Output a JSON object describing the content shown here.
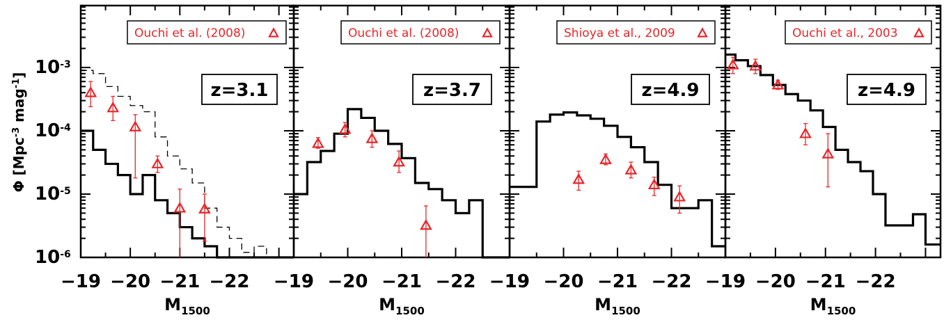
{
  "y_axis_title": {
    "text": "Φ [Mpc",
    "sup1": "-3",
    "mid": " mag",
    "sup2": "-1",
    "end": "]"
  },
  "y_tick_labels": [
    {
      "base": "10",
      "exp": "-6",
      "value": 1e-06
    },
    {
      "base": "10",
      "exp": "-5",
      "value": 1e-05
    },
    {
      "base": "10",
      "exp": "-4",
      "value": 0.0001
    },
    {
      "base": "10",
      "exp": "-3",
      "value": 0.001
    }
  ],
  "colors": {
    "data": "#e8262a",
    "model": "#000000"
  },
  "chart_data": [
    {
      "type": "line",
      "panel_label": "z=3.1",
      "legend": "Ouchi et al. (2008)",
      "xlabel": {
        "main": "M",
        "sub": "1500"
      },
      "xlim": [
        -19,
        -23.3
      ],
      "ylim": [
        1e-06,
        0.01
      ],
      "y_scale": "log",
      "x_ticks": [
        "-19",
        "-20",
        "-21",
        "-22"
      ],
      "model_solid": {
        "edges": [
          -19,
          -19.25,
          -19.5,
          -19.75,
          -20,
          -20.25,
          -20.5,
          -20.75,
          -21,
          -21.25,
          -21.5,
          -21.75,
          -22,
          -22.25,
          -22.5,
          -22.75,
          -23,
          -23.3
        ],
        "values": [
          0.0001,
          5e-05,
          3e-05,
          2e-05,
          1e-05,
          2e-05,
          8e-06,
          5e-06,
          3e-06,
          2e-06,
          1.5e-06,
          1e-06,
          1e-06,
          1e-06,
          1e-06,
          1e-06,
          1e-06
        ]
      },
      "model_dashed": {
        "edges": [
          -19,
          -19.25,
          -19.5,
          -19.75,
          -20,
          -20.25,
          -20.5,
          -20.75,
          -21,
          -21.25,
          -21.5,
          -21.75,
          -22,
          -22.25,
          -22.5,
          -22.75,
          -23,
          -23.3
        ],
        "values": [
          0.0009,
          0.0008,
          0.0005,
          0.00035,
          0.00025,
          0.0002,
          8e-05,
          4e-05,
          2.5e-05,
          1.5e-05,
          6e-06,
          3e-06,
          2e-06,
          1.2e-06,
          1.5e-06,
          1e-06,
          1e-06
        ]
      },
      "points": [
        {
          "x": -19.2,
          "y": 0.0004,
          "lo": 0.00024,
          "hi": 0.0006
        },
        {
          "x": -19.65,
          "y": 0.00023,
          "lo": 0.000145,
          "hi": 0.00035
        },
        {
          "x": -20.1,
          "y": 0.000115,
          "lo": 1.8e-05,
          "hi": 0.00018
        },
        {
          "x": -20.55,
          "y": 3e-05,
          "lo": 2.2e-05,
          "hi": 4e-05
        },
        {
          "x": -21.0,
          "y": 6e-06,
          "lo": 1e-06,
          "hi": 1.2e-05
        },
        {
          "x": -21.5,
          "y": 5.8e-06,
          "lo": 1.8e-06,
          "hi": 1e-05
        }
      ]
    },
    {
      "type": "line",
      "panel_label": "z=3.7",
      "legend": "Ouchi et al. (2008)",
      "xlabel": {
        "main": "M",
        "sub": "1500"
      },
      "xlim": [
        -19,
        -23
      ],
      "ylim": [
        1e-06,
        0.01
      ],
      "y_scale": "log",
      "x_ticks": [
        "-19",
        "-20",
        "-21",
        "-22"
      ],
      "model_solid": {
        "edges": [
          -19,
          -19.25,
          -19.5,
          -19.75,
          -20,
          -20.25,
          -20.5,
          -20.75,
          -21,
          -21.25,
          -21.5,
          -21.75,
          -22,
          -22.25,
          -22.5,
          -23
        ],
        "values": [
          1e-05,
          3.2e-05,
          4.8e-05,
          9e-05,
          0.00022,
          0.00016,
          0.0001,
          6.2e-05,
          3.7e-05,
          1.5e-05,
          1.2e-05,
          8e-06,
          5e-06,
          8e-06,
          1e-06
        ]
      },
      "points": [
        {
          "x": -19.45,
          "y": 6.3e-05,
          "lo": 5.3e-05,
          "hi": 7.8e-05
        },
        {
          "x": -19.95,
          "y": 0.000105,
          "lo": 8e-05,
          "hi": 0.000135
        },
        {
          "x": -20.45,
          "y": 7.5e-05,
          "lo": 5.5e-05,
          "hi": 0.0001
        },
        {
          "x": -20.95,
          "y": 3.2e-05,
          "lo": 2.2e-05,
          "hi": 4.8e-05
        },
        {
          "x": -21.45,
          "y": 3.2e-06,
          "lo": 1e-06,
          "hi": 6.5e-06
        }
      ]
    },
    {
      "type": "line",
      "panel_label": "z=4.9",
      "legend": "Shioya et al., 2009",
      "xlabel": {
        "main": "M",
        "sub": "1500"
      },
      "xlim": [
        -19,
        -23
      ],
      "ylim": [
        1e-06,
        0.01
      ],
      "y_scale": "log",
      "x_ticks": [
        "-19",
        "-20",
        "-21",
        "-22"
      ],
      "model_solid": {
        "edges": [
          -19,
          -19.5,
          -19.75,
          -20,
          -20.25,
          -20.5,
          -20.75,
          -21,
          -21.25,
          -21.5,
          -21.75,
          -22,
          -22.25,
          -22.5,
          -22.75,
          -23
        ],
        "values": [
          1.3e-05,
          0.00014,
          0.00018,
          0.000195,
          0.000175,
          0.000155,
          0.00012,
          8e-05,
          5.5e-05,
          3.2e-05,
          1.4e-05,
          6e-06,
          6e-06,
          8e-06,
          1.5e-06
        ]
      },
      "points": [
        {
          "x": -20.28,
          "y": 1.7e-05,
          "lo": 1.15e-05,
          "hi": 2.3e-05
        },
        {
          "x": -20.78,
          "y": 3.5e-05,
          "lo": 2.9e-05,
          "hi": 4.3e-05
        },
        {
          "x": -21.25,
          "y": 2.4e-05,
          "lo": 1.8e-05,
          "hi": 3.2e-05
        },
        {
          "x": -21.68,
          "y": 1.4e-05,
          "lo": 9.5e-06,
          "hi": 1.85e-05
        },
        {
          "x": -22.15,
          "y": 9e-06,
          "lo": 5e-06,
          "hi": 1.35e-05
        }
      ]
    },
    {
      "type": "line",
      "panel_label": "z=4.9",
      "legend": "Ouchi et al., 2003",
      "xlabel": {
        "main": "M",
        "sub": "1500"
      },
      "xlim": [
        -19,
        -23.3
      ],
      "ylim": [
        1e-06,
        0.01
      ],
      "y_scale": "log",
      "x_ticks": [
        "-19",
        "-20",
        "-21",
        "-22"
      ],
      "model_solid": {
        "edges": [
          -19,
          -19.2,
          -19.45,
          -19.7,
          -19.95,
          -20.2,
          -20.45,
          -20.7,
          -20.95,
          -21.2,
          -21.45,
          -21.7,
          -21.95,
          -22.2,
          -22.5,
          -22.75,
          -23.0,
          -23.3
        ],
        "values": [
          0.0016,
          0.0013,
          0.00105,
          0.00076,
          0.00053,
          0.00038,
          0.0003,
          0.00021,
          0.000115,
          5e-05,
          3.2e-05,
          2.3e-05,
          1e-05,
          3.2e-06,
          3.2e-06,
          4.8e-06,
          1.6e-06
        ]
      },
      "points": [
        {
          "x": -19.15,
          "y": 0.0011,
          "lo": 0.0008,
          "hi": 0.00145
        },
        {
          "x": -19.6,
          "y": 0.00105,
          "lo": 0.0008,
          "hi": 0.00135
        },
        {
          "x": -20.05,
          "y": 0.00053,
          "lo": 0.00045,
          "hi": 0.00063
        },
        {
          "x": -20.6,
          "y": 9e-05,
          "lo": 6e-05,
          "hi": 0.00013
        },
        {
          "x": -21.05,
          "y": 4.3e-05,
          "lo": 1.3e-05,
          "hi": 9e-05
        }
      ]
    }
  ]
}
